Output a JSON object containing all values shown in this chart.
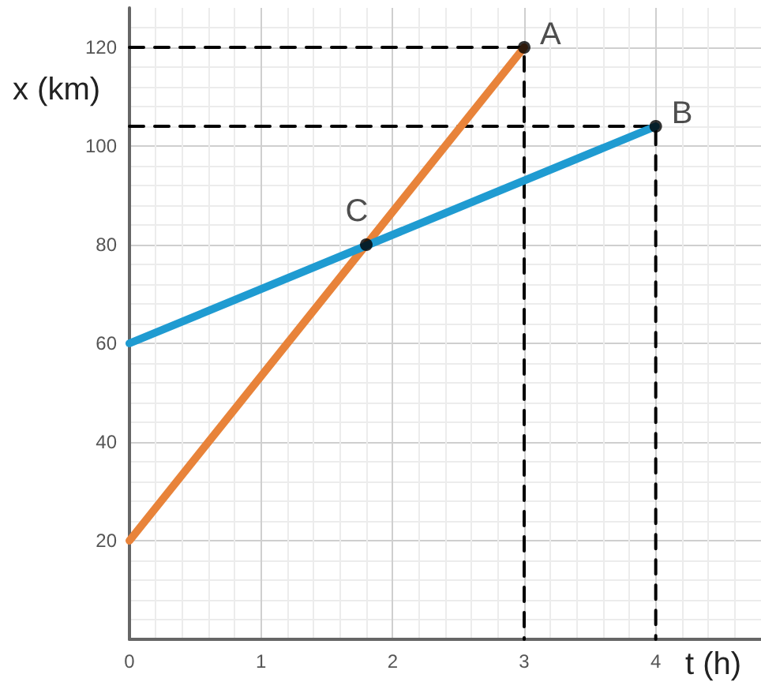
{
  "chart_data": {
    "type": "line",
    "xlabel": "t (h)",
    "ylabel": "x (km)",
    "xlim": [
      0,
      4.8
    ],
    "ylim": [
      0,
      128
    ],
    "xticks": [
      0,
      1,
      2,
      3,
      4
    ],
    "yticks": [
      20,
      40,
      60,
      80,
      100,
      120
    ],
    "grid": true,
    "marker": "none",
    "series": [
      {
        "color": "#e8833a",
        "x": [
          0,
          3
        ],
        "values": [
          20,
          120
        ]
      },
      {
        "color": "#1f9bd1",
        "x": [
          0,
          4
        ],
        "values": [
          60,
          104
        ]
      },
      {
        "color": "#000000",
        "x": [
          0,
          3,
          3
        ],
        "values": [
          120,
          120,
          0
        ],
        "line_style": "dashed"
      },
      {
        "color": "#000000",
        "x": [
          0,
          4,
          4
        ],
        "values": [
          104,
          104,
          0
        ],
        "line_style": "dashed"
      },
      {
        "type": "scatter",
        "color": "#000000",
        "x": [
          3,
          4,
          1.8
        ],
        "values": [
          120,
          104,
          80
        ],
        "marker": "circle",
        "value_labels": [
          "A",
          "B",
          "C"
        ]
      }
    ]
  }
}
